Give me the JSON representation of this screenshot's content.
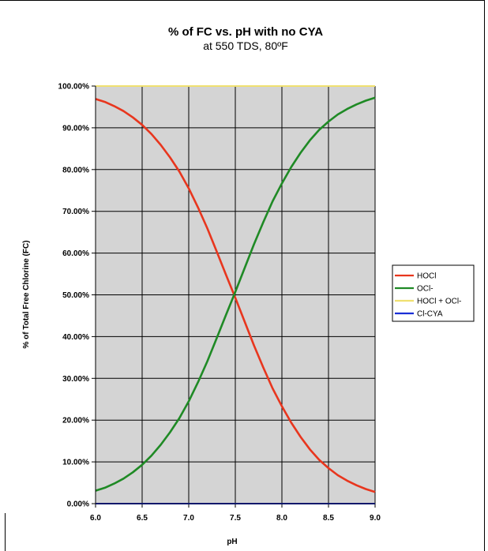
{
  "chart_data": {
    "type": "line",
    "title": "% of FC vs. pH with no CYA",
    "subtitle": "at 550 TDS, 80ºF",
    "xlabel": "pH",
    "ylabel": "% of Total Free Chlorine (FC)",
    "xlim": [
      6.0,
      9.0
    ],
    "ylim": [
      0,
      100
    ],
    "x_ticks": [
      "6.0",
      "6.5",
      "7.0",
      "7.5",
      "8.0",
      "8.5",
      "9.0"
    ],
    "y_ticks": [
      "0.00%",
      "10.00%",
      "20.00%",
      "30.00%",
      "40.00%",
      "50.00%",
      "60.00%",
      "70.00%",
      "80.00%",
      "90.00%",
      "100.00%"
    ],
    "grid": true,
    "background": "#d4d4d4",
    "legend_position": "right",
    "x": [
      6.0,
      6.1,
      6.2,
      6.3,
      6.4,
      6.5,
      6.6,
      6.7,
      6.8,
      6.9,
      7.0,
      7.1,
      7.2,
      7.3,
      7.4,
      7.5,
      7.6,
      7.7,
      7.8,
      7.9,
      8.0,
      8.1,
      8.2,
      8.3,
      8.4,
      8.5,
      8.6,
      8.7,
      8.8,
      8.9,
      9.0
    ],
    "series": [
      {
        "name": "HOCl",
        "color": "#e8361e",
        "values": [
          96.9,
          96.2,
          95.2,
          94.0,
          92.5,
          90.7,
          88.5,
          85.9,
          82.9,
          79.5,
          75.5,
          70.9,
          65.9,
          60.4,
          54.8,
          49.3,
          43.6,
          37.9,
          32.6,
          27.6,
          23.3,
          19.4,
          16.0,
          13.0,
          10.5,
          8.5,
          6.8,
          5.5,
          4.4,
          3.5,
          2.8
        ]
      },
      {
        "name": "OCl-",
        "color": "#1f8a25",
        "values": [
          3.1,
          3.8,
          4.8,
          6.0,
          7.5,
          9.3,
          11.5,
          14.1,
          17.1,
          20.5,
          24.5,
          29.1,
          34.1,
          39.6,
          45.2,
          50.7,
          56.4,
          62.1,
          67.4,
          72.4,
          76.7,
          80.6,
          84.0,
          87.0,
          89.5,
          91.5,
          93.2,
          94.5,
          95.6,
          96.5,
          97.2
        ]
      },
      {
        "name": "HOCl + OCl-",
        "color": "#f0e070",
        "values": [
          100,
          100,
          100,
          100,
          100,
          100,
          100,
          100,
          100,
          100,
          100,
          100,
          100,
          100,
          100,
          100,
          100,
          100,
          100,
          100,
          100,
          100,
          100,
          100,
          100,
          100,
          100,
          100,
          100,
          100,
          100
        ]
      },
      {
        "name": "Cl-CYA",
        "color": "#1a2fd6",
        "values": [
          0,
          0,
          0,
          0,
          0,
          0,
          0,
          0,
          0,
          0,
          0,
          0,
          0,
          0,
          0,
          0,
          0,
          0,
          0,
          0,
          0,
          0,
          0,
          0,
          0,
          0,
          0,
          0,
          0,
          0,
          0
        ]
      }
    ],
    "legend": [
      {
        "label": "HOCl",
        "color": "#e8361e"
      },
      {
        "label": "OCl-",
        "color": "#1f8a25"
      },
      {
        "label": "HOCl + OCl-",
        "color": "#f0e070"
      },
      {
        "label": "Cl-CYA",
        "color": "#1a2fd6"
      }
    ]
  }
}
